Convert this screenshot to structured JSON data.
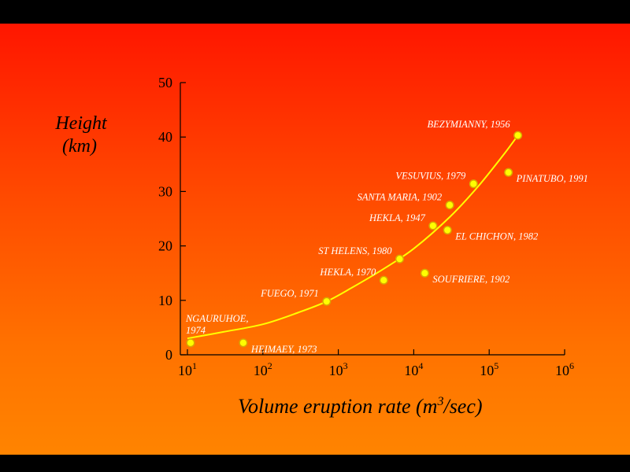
{
  "colors": {
    "frame": "#000000",
    "gradient_top": "#ff1600",
    "gradient_bottom": "#ff8400",
    "trend_line": "#ffff00",
    "marker": "#ffff00",
    "label_text": "#ffffff",
    "axis": "#000000"
  },
  "chart_data": {
    "type": "scatter",
    "title": "",
    "ylabel_lines": [
      "Height",
      "(km)"
    ],
    "xlabel_main": "Volume eruption rate  (m",
    "xlabel_sup": "3",
    "xlabel_tail": "/sec)",
    "x_scale": "log",
    "xlim": [
      10,
      1000000
    ],
    "ylim": [
      0,
      50
    ],
    "grid": false,
    "legend": "none",
    "x_ticks": [
      {
        "base": "10",
        "exp": "1",
        "value": 10
      },
      {
        "base": "10",
        "exp": "2",
        "value": 100
      },
      {
        "base": "10",
        "exp": "3",
        "value": 1000
      },
      {
        "base": "10",
        "exp": "4",
        "value": 10000
      },
      {
        "base": "10",
        "exp": "5",
        "value": 100000
      },
      {
        "base": "10",
        "exp": "6",
        "value": 1000000
      }
    ],
    "y_ticks": [
      "0",
      "10",
      "20",
      "30",
      "40",
      "50"
    ],
    "series": [
      {
        "points": [
          {
            "label": "NGAURUHOE,|1974",
            "x": 11,
            "y": 2.2,
            "label_side": "above-left"
          },
          {
            "label": "HEIMAEY, 1973",
            "x": 55,
            "y": 2.2,
            "label_side": "right"
          },
          {
            "label": "FUEGO, 1971",
            "x": 700,
            "y": 9.8,
            "label_side": "left"
          },
          {
            "label": "HEKLA, 1970",
            "x": 4000,
            "y": 13.7,
            "label_side": "left"
          },
          {
            "label": "ST HELENS, 1980",
            "x": 6500,
            "y": 17.6,
            "label_side": "left"
          },
          {
            "label": "SOUFRIERE, 1902",
            "x": 14000,
            "y": 15.0,
            "label_side": "right"
          },
          {
            "label": "HEKLA, 1947",
            "x": 18000,
            "y": 23.7,
            "label_side": "left"
          },
          {
            "label": "EL CHICHON, 1982",
            "x": 28000,
            "y": 22.9,
            "label_side": "right"
          },
          {
            "label": "SANTA MARIA, 1902",
            "x": 30000,
            "y": 27.5,
            "label_side": "left"
          },
          {
            "label": "VESUVIUS, 1979",
            "x": 62000,
            "y": 31.4,
            "label_side": "left"
          },
          {
            "label": "PINATUBO, 1991",
            "x": 180000,
            "y": 33.5,
            "label_side": "right"
          },
          {
            "label": "BEZYMIANNY, 1956",
            "x": 240000,
            "y": 40.3,
            "label_side": "above-left"
          }
        ]
      }
    ],
    "trend_line": {
      "x": [
        10,
        30,
        100,
        300,
        700,
        1500,
        4000,
        10000,
        30000,
        70000,
        150000,
        240000
      ],
      "y": [
        3.0,
        4.2,
        5.6,
        7.8,
        9.8,
        12.3,
        15.8,
        19.5,
        25.3,
        30.8,
        36.5,
        40.3
      ]
    }
  }
}
